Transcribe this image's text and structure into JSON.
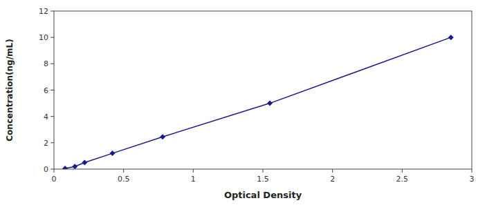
{
  "chart_data": {
    "type": "line",
    "x": [
      0.08,
      0.15,
      0.22,
      0.42,
      0.78,
      1.55,
      2.85
    ],
    "values": [
      0.05,
      0.2,
      0.5,
      1.2,
      2.45,
      5.0,
      10.0
    ],
    "color": "#1a1a8c",
    "marker": "diamond",
    "xlabel": "Optical Density",
    "ylabel": "Concentration(ng/mL)",
    "xlim": [
      0,
      3.0
    ],
    "ylim": [
      0,
      12
    ],
    "xticks": [
      0,
      0.5,
      1,
      1.5,
      2,
      2.5,
      3
    ],
    "yticks": [
      0,
      2,
      4,
      6,
      8,
      10,
      12
    ],
    "grid": false
  }
}
